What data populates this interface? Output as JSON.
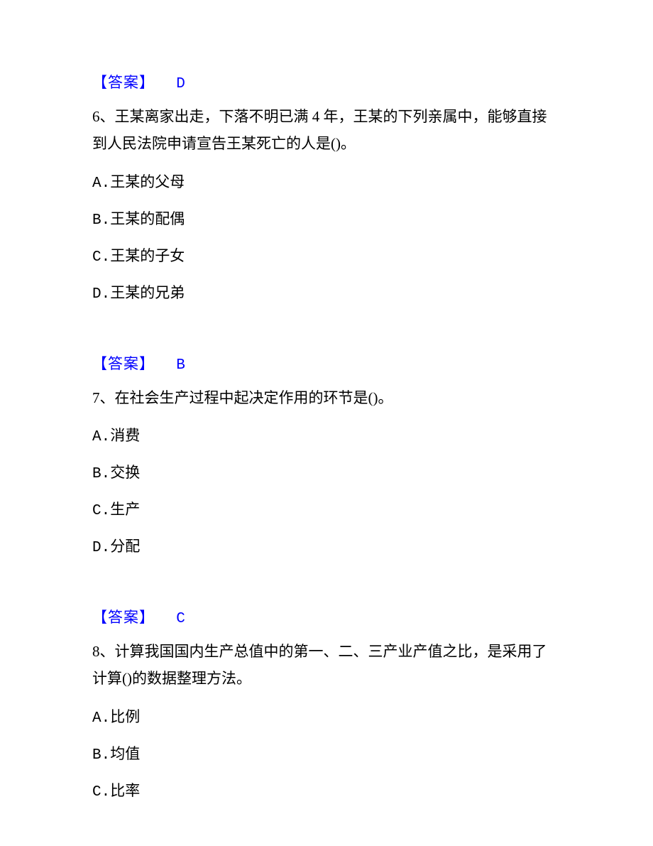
{
  "blocks": [
    {
      "answer": {
        "label": "【答案】",
        "letter": "D"
      },
      "question": {
        "number": "6、",
        "text": "王某离家出走，下落不明已满 4 年，王某的下列亲属中，能够直接到人民法院申请宣告王某死亡的人是()。"
      },
      "options": [
        {
          "letter": "A.",
          "text": "王某的父母"
        },
        {
          "letter": "B.",
          "text": "王某的配偶"
        },
        {
          "letter": "C.",
          "text": "王某的子女"
        },
        {
          "letter": "D.",
          "text": "王某的兄弟"
        }
      ]
    },
    {
      "answer": {
        "label": "【答案】",
        "letter": "B"
      },
      "question": {
        "number": "7、",
        "text": "在社会生产过程中起决定作用的环节是()。"
      },
      "options": [
        {
          "letter": "A.",
          "text": "消费"
        },
        {
          "letter": "B.",
          "text": "交换"
        },
        {
          "letter": "C.",
          "text": "生产"
        },
        {
          "letter": "D.",
          "text": "分配"
        }
      ]
    },
    {
      "answer": {
        "label": "【答案】",
        "letter": "C"
      },
      "question": {
        "number": "8、",
        "text": "计算我国国内生产总值中的第一、二、三产业产值之比，是采用了计算()的数据整理方法。"
      },
      "options": [
        {
          "letter": "A.",
          "text": "比例"
        },
        {
          "letter": "B.",
          "text": "均值"
        },
        {
          "letter": "C.",
          "text": "比率"
        }
      ]
    }
  ],
  "colors": {
    "answer_color": "#0000ff",
    "text_color": "#000000",
    "background": "#ffffff"
  },
  "typography": {
    "body_fontsize": 21,
    "line_height": 1.8
  }
}
